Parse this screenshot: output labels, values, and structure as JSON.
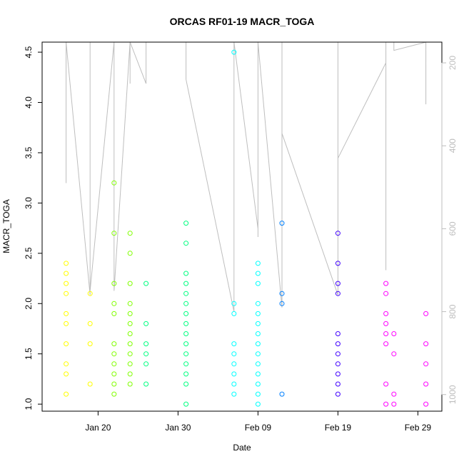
{
  "chart_data": {
    "type": "scatter",
    "title": "ORCAS RF01-19 MACR_TOGA",
    "xlabel": "Date",
    "ylabel": "MACR_TOGA",
    "xlim": [
      "2016-01-13",
      "2016-03-03"
    ],
    "ylim": [
      0.93,
      4.6
    ],
    "y2lim": [
      1040,
      150
    ],
    "x_ticks": [
      {
        "date": "2016-01-20",
        "label": "Jan 20"
      },
      {
        "date": "2016-01-30",
        "label": "Jan 30"
      },
      {
        "date": "2016-02-09",
        "label": "Feb 09"
      },
      {
        "date": "2016-02-19",
        "label": "Feb 19"
      },
      {
        "date": "2016-02-29",
        "label": "Feb 29"
      }
    ],
    "y_ticks": [
      1.0,
      1.5,
      2.0,
      2.5,
      3.0,
      3.5,
      4.0,
      4.5
    ],
    "y2_ticks": [
      200,
      400,
      600,
      800,
      1000
    ],
    "grid": false,
    "legend": "none",
    "colors": {
      "points": [
        "#ffff00",
        "#80ff00",
        "#00ff80",
        "#00ffff",
        "#0080ff",
        "#4000ff",
        "#ff00ff"
      ],
      "secondary_line": "#bebebe",
      "axis": "#000000",
      "secondary_axis": "#bdbdbd"
    },
    "series": [
      {
        "color": "#ffff00",
        "points": [
          [
            "2016-01-16",
            2.4
          ],
          [
            "2016-01-16",
            2.3
          ],
          [
            "2016-01-16",
            2.2
          ],
          [
            "2016-01-16",
            2.1
          ],
          [
            "2016-01-16",
            1.9
          ],
          [
            "2016-01-16",
            1.8
          ],
          [
            "2016-01-16",
            1.6
          ],
          [
            "2016-01-16",
            1.4
          ],
          [
            "2016-01-16",
            1.3
          ],
          [
            "2016-01-16",
            1.1
          ],
          [
            "2016-01-19",
            2.1
          ],
          [
            "2016-01-19",
            1.8
          ],
          [
            "2016-01-19",
            1.6
          ],
          [
            "2016-01-19",
            1.2
          ]
        ]
      },
      {
        "color": "#80ff00",
        "points": [
          [
            "2016-01-22",
            3.2
          ],
          [
            "2016-01-22",
            2.7
          ],
          [
            "2016-01-22",
            2.2
          ],
          [
            "2016-01-22",
            2.0
          ],
          [
            "2016-01-22",
            1.9
          ],
          [
            "2016-01-22",
            1.6
          ],
          [
            "2016-01-22",
            1.5
          ],
          [
            "2016-01-22",
            1.4
          ],
          [
            "2016-01-22",
            1.3
          ],
          [
            "2016-01-22",
            1.2
          ],
          [
            "2016-01-22",
            1.1
          ],
          [
            "2016-01-24",
            2.7
          ],
          [
            "2016-01-24",
            2.5
          ],
          [
            "2016-01-24",
            2.2
          ],
          [
            "2016-01-24",
            2.0
          ],
          [
            "2016-01-24",
            1.9
          ],
          [
            "2016-01-24",
            1.8
          ],
          [
            "2016-01-24",
            1.7
          ],
          [
            "2016-01-24",
            1.6
          ],
          [
            "2016-01-24",
            1.5
          ],
          [
            "2016-01-24",
            1.4
          ],
          [
            "2016-01-24",
            1.3
          ],
          [
            "2016-01-24",
            1.2
          ]
        ]
      },
      {
        "color": "#00ff80",
        "points": [
          [
            "2016-01-26",
            2.2
          ],
          [
            "2016-01-26",
            1.8
          ],
          [
            "2016-01-26",
            1.6
          ],
          [
            "2016-01-26",
            1.5
          ],
          [
            "2016-01-26",
            1.4
          ],
          [
            "2016-01-26",
            1.2
          ],
          [
            "2016-01-31",
            2.8
          ],
          [
            "2016-01-31",
            2.6
          ],
          [
            "2016-01-31",
            2.3
          ],
          [
            "2016-01-31",
            2.2
          ],
          [
            "2016-01-31",
            2.1
          ],
          [
            "2016-01-31",
            2.0
          ],
          [
            "2016-01-31",
            1.9
          ],
          [
            "2016-01-31",
            1.8
          ],
          [
            "2016-01-31",
            1.7
          ],
          [
            "2016-01-31",
            1.6
          ],
          [
            "2016-01-31",
            1.5
          ],
          [
            "2016-01-31",
            1.4
          ],
          [
            "2016-01-31",
            1.3
          ],
          [
            "2016-01-31",
            1.2
          ],
          [
            "2016-01-31",
            1.0
          ]
        ]
      },
      {
        "color": "#00ffff",
        "points": [
          [
            "2016-02-06",
            4.5
          ],
          [
            "2016-02-06",
            2.0
          ],
          [
            "2016-02-06",
            1.9
          ],
          [
            "2016-02-06",
            1.6
          ],
          [
            "2016-02-06",
            1.5
          ],
          [
            "2016-02-06",
            1.4
          ],
          [
            "2016-02-06",
            1.3
          ],
          [
            "2016-02-06",
            1.2
          ],
          [
            "2016-02-06",
            1.1
          ],
          [
            "2016-02-09",
            2.4
          ],
          [
            "2016-02-09",
            2.3
          ],
          [
            "2016-02-09",
            2.2
          ],
          [
            "2016-02-09",
            2.0
          ],
          [
            "2016-02-09",
            1.9
          ],
          [
            "2016-02-09",
            1.8
          ],
          [
            "2016-02-09",
            1.7
          ],
          [
            "2016-02-09",
            1.6
          ],
          [
            "2016-02-09",
            1.5
          ],
          [
            "2016-02-09",
            1.4
          ],
          [
            "2016-02-09",
            1.3
          ],
          [
            "2016-02-09",
            1.2
          ],
          [
            "2016-02-09",
            1.1
          ],
          [
            "2016-02-09",
            1.0
          ]
        ]
      },
      {
        "color": "#0080ff",
        "points": [
          [
            "2016-02-12",
            2.8
          ],
          [
            "2016-02-12",
            2.1
          ],
          [
            "2016-02-12",
            2.0
          ],
          [
            "2016-02-12",
            1.1
          ]
        ]
      },
      {
        "color": "#4000ff",
        "points": [
          [
            "2016-02-19",
            2.7
          ],
          [
            "2016-02-19",
            2.4
          ],
          [
            "2016-02-19",
            2.2
          ],
          [
            "2016-02-19",
            2.1
          ],
          [
            "2016-02-19",
            1.7
          ],
          [
            "2016-02-19",
            1.6
          ],
          [
            "2016-02-19",
            1.5
          ],
          [
            "2016-02-19",
            1.4
          ],
          [
            "2016-02-19",
            1.3
          ],
          [
            "2016-02-19",
            1.2
          ],
          [
            "2016-02-19",
            1.1
          ]
        ]
      },
      {
        "color": "#ff00ff",
        "points": [
          [
            "2016-02-25",
            2.2
          ],
          [
            "2016-02-25",
            2.1
          ],
          [
            "2016-02-25",
            1.9
          ],
          [
            "2016-02-25",
            1.8
          ],
          [
            "2016-02-25",
            1.7
          ],
          [
            "2016-02-25",
            1.6
          ],
          [
            "2016-02-25",
            1.2
          ],
          [
            "2016-02-25",
            1.0
          ],
          [
            "2016-02-26",
            1.7
          ],
          [
            "2016-02-26",
            1.5
          ],
          [
            "2016-02-26",
            1.1
          ],
          [
            "2016-02-26",
            1.0
          ],
          [
            "2016-03-01",
            1.9
          ],
          [
            "2016-03-01",
            1.6
          ],
          [
            "2016-03-01",
            1.4
          ],
          [
            "2016-03-01",
            1.2
          ],
          [
            "2016-03-01",
            1.0
          ]
        ]
      }
    ],
    "secondary_series": {
      "color": "#bebebe",
      "points": [
        [
          "2016-01-16",
          150
        ],
        [
          "2016-01-16",
          350
        ],
        [
          "2016-01-16",
          490
        ],
        [
          "2016-01-16",
          450
        ],
        [
          "2016-01-16",
          220
        ],
        [
          "2016-01-16",
          150
        ],
        [
          "2016-01-19",
          760
        ],
        [
          "2016-01-19",
          700
        ],
        [
          "2016-01-19",
          150
        ],
        [
          "2016-01-19",
          750
        ],
        [
          "2016-01-22",
          150
        ],
        [
          "2016-01-22",
          600
        ],
        [
          "2016-01-22",
          750
        ],
        [
          "2016-01-24",
          150
        ],
        [
          "2016-01-24",
          250
        ],
        [
          "2016-01-24",
          150
        ],
        [
          "2016-01-26",
          250
        ],
        [
          "2016-01-26",
          150
        ],
        [
          "2016-01-31",
          150
        ],
        [
          "2016-01-31",
          240
        ],
        [
          "2016-01-31",
          150
        ],
        [
          "2016-01-31",
          240
        ],
        [
          "2016-02-06",
          800
        ],
        [
          "2016-02-06",
          150
        ],
        [
          "2016-02-09",
          600
        ],
        [
          "2016-02-09",
          150
        ],
        [
          "2016-02-09",
          620
        ],
        [
          "2016-02-09",
          150
        ],
        [
          "2016-02-12",
          790
        ],
        [
          "2016-02-12",
          150
        ],
        [
          "2016-02-12",
          370
        ],
        [
          "2016-02-19",
          760
        ],
        [
          "2016-02-19",
          150
        ],
        [
          "2016-02-19",
          410
        ],
        [
          "2016-02-19",
          430
        ],
        [
          "2016-02-25",
          200
        ],
        [
          "2016-02-25",
          700
        ],
        [
          "2016-02-25",
          150
        ],
        [
          "2016-02-26",
          150
        ],
        [
          "2016-02-26",
          170
        ],
        [
          "2016-03-01",
          150
        ],
        [
          "2016-03-01",
          300
        ]
      ]
    }
  }
}
